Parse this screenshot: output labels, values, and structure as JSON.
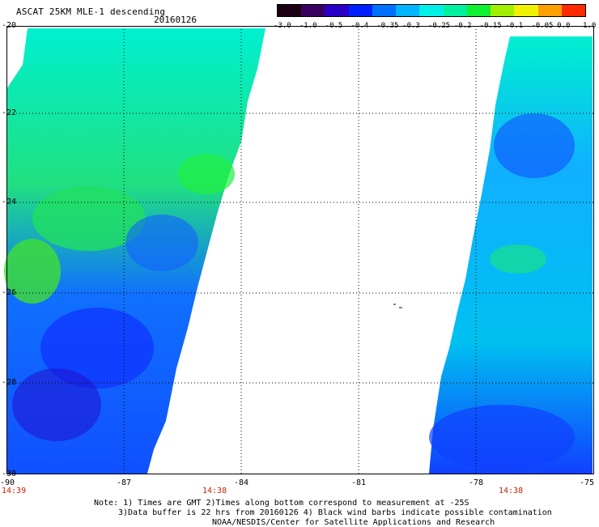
{
  "header": {
    "title": "ASCAT 25KM MLE-1 descending",
    "date": "20160126"
  },
  "colorbar": {
    "labels": [
      "-3.0",
      "-1.0",
      "-0.5",
      "-0.4",
      "-0.35",
      "-0.3",
      "-0.25",
      "-0.2",
      "-0.15",
      "-0.1",
      "-0.05",
      "0.0",
      "1.0"
    ],
    "colors": [
      "#1a0010",
      "#3a0060",
      "#2a00c8",
      "#0020ff",
      "#0070ff",
      "#00b4ff",
      "#00f0e8",
      "#00f0a0",
      "#10f030",
      "#a0f000",
      "#f0f000",
      "#ffa000",
      "#ff2a00"
    ]
  },
  "map": {
    "lat_labels": [
      "-20",
      "-22",
      "-24",
      "-26",
      "-28",
      "-30"
    ],
    "lon_labels": [
      "-90",
      "-87",
      "-84",
      "-81",
      "-78",
      "-75"
    ],
    "time_labels": [
      "14:39",
      "14:38",
      "14:38"
    ],
    "lat_range": [
      -30,
      -20
    ],
    "lon_range": [
      -90,
      -75
    ],
    "swath_colors": {
      "blue_deep": "#2a00c8",
      "blue": "#0040ff",
      "blue_light": "#2090ff",
      "cyan": "#00f0e8",
      "green": "#10f030"
    }
  },
  "footer": {
    "line1": "Note: 1) Times are GMT 2)Times along bottom correspond to measurement at -25S",
    "line2": "3)Data buffer is 22 hrs from 20160126 4) Black wind barbs indicate possible contamination",
    "line3": "NOAA/NESDIS/Center for Satellite Applications and Research"
  }
}
